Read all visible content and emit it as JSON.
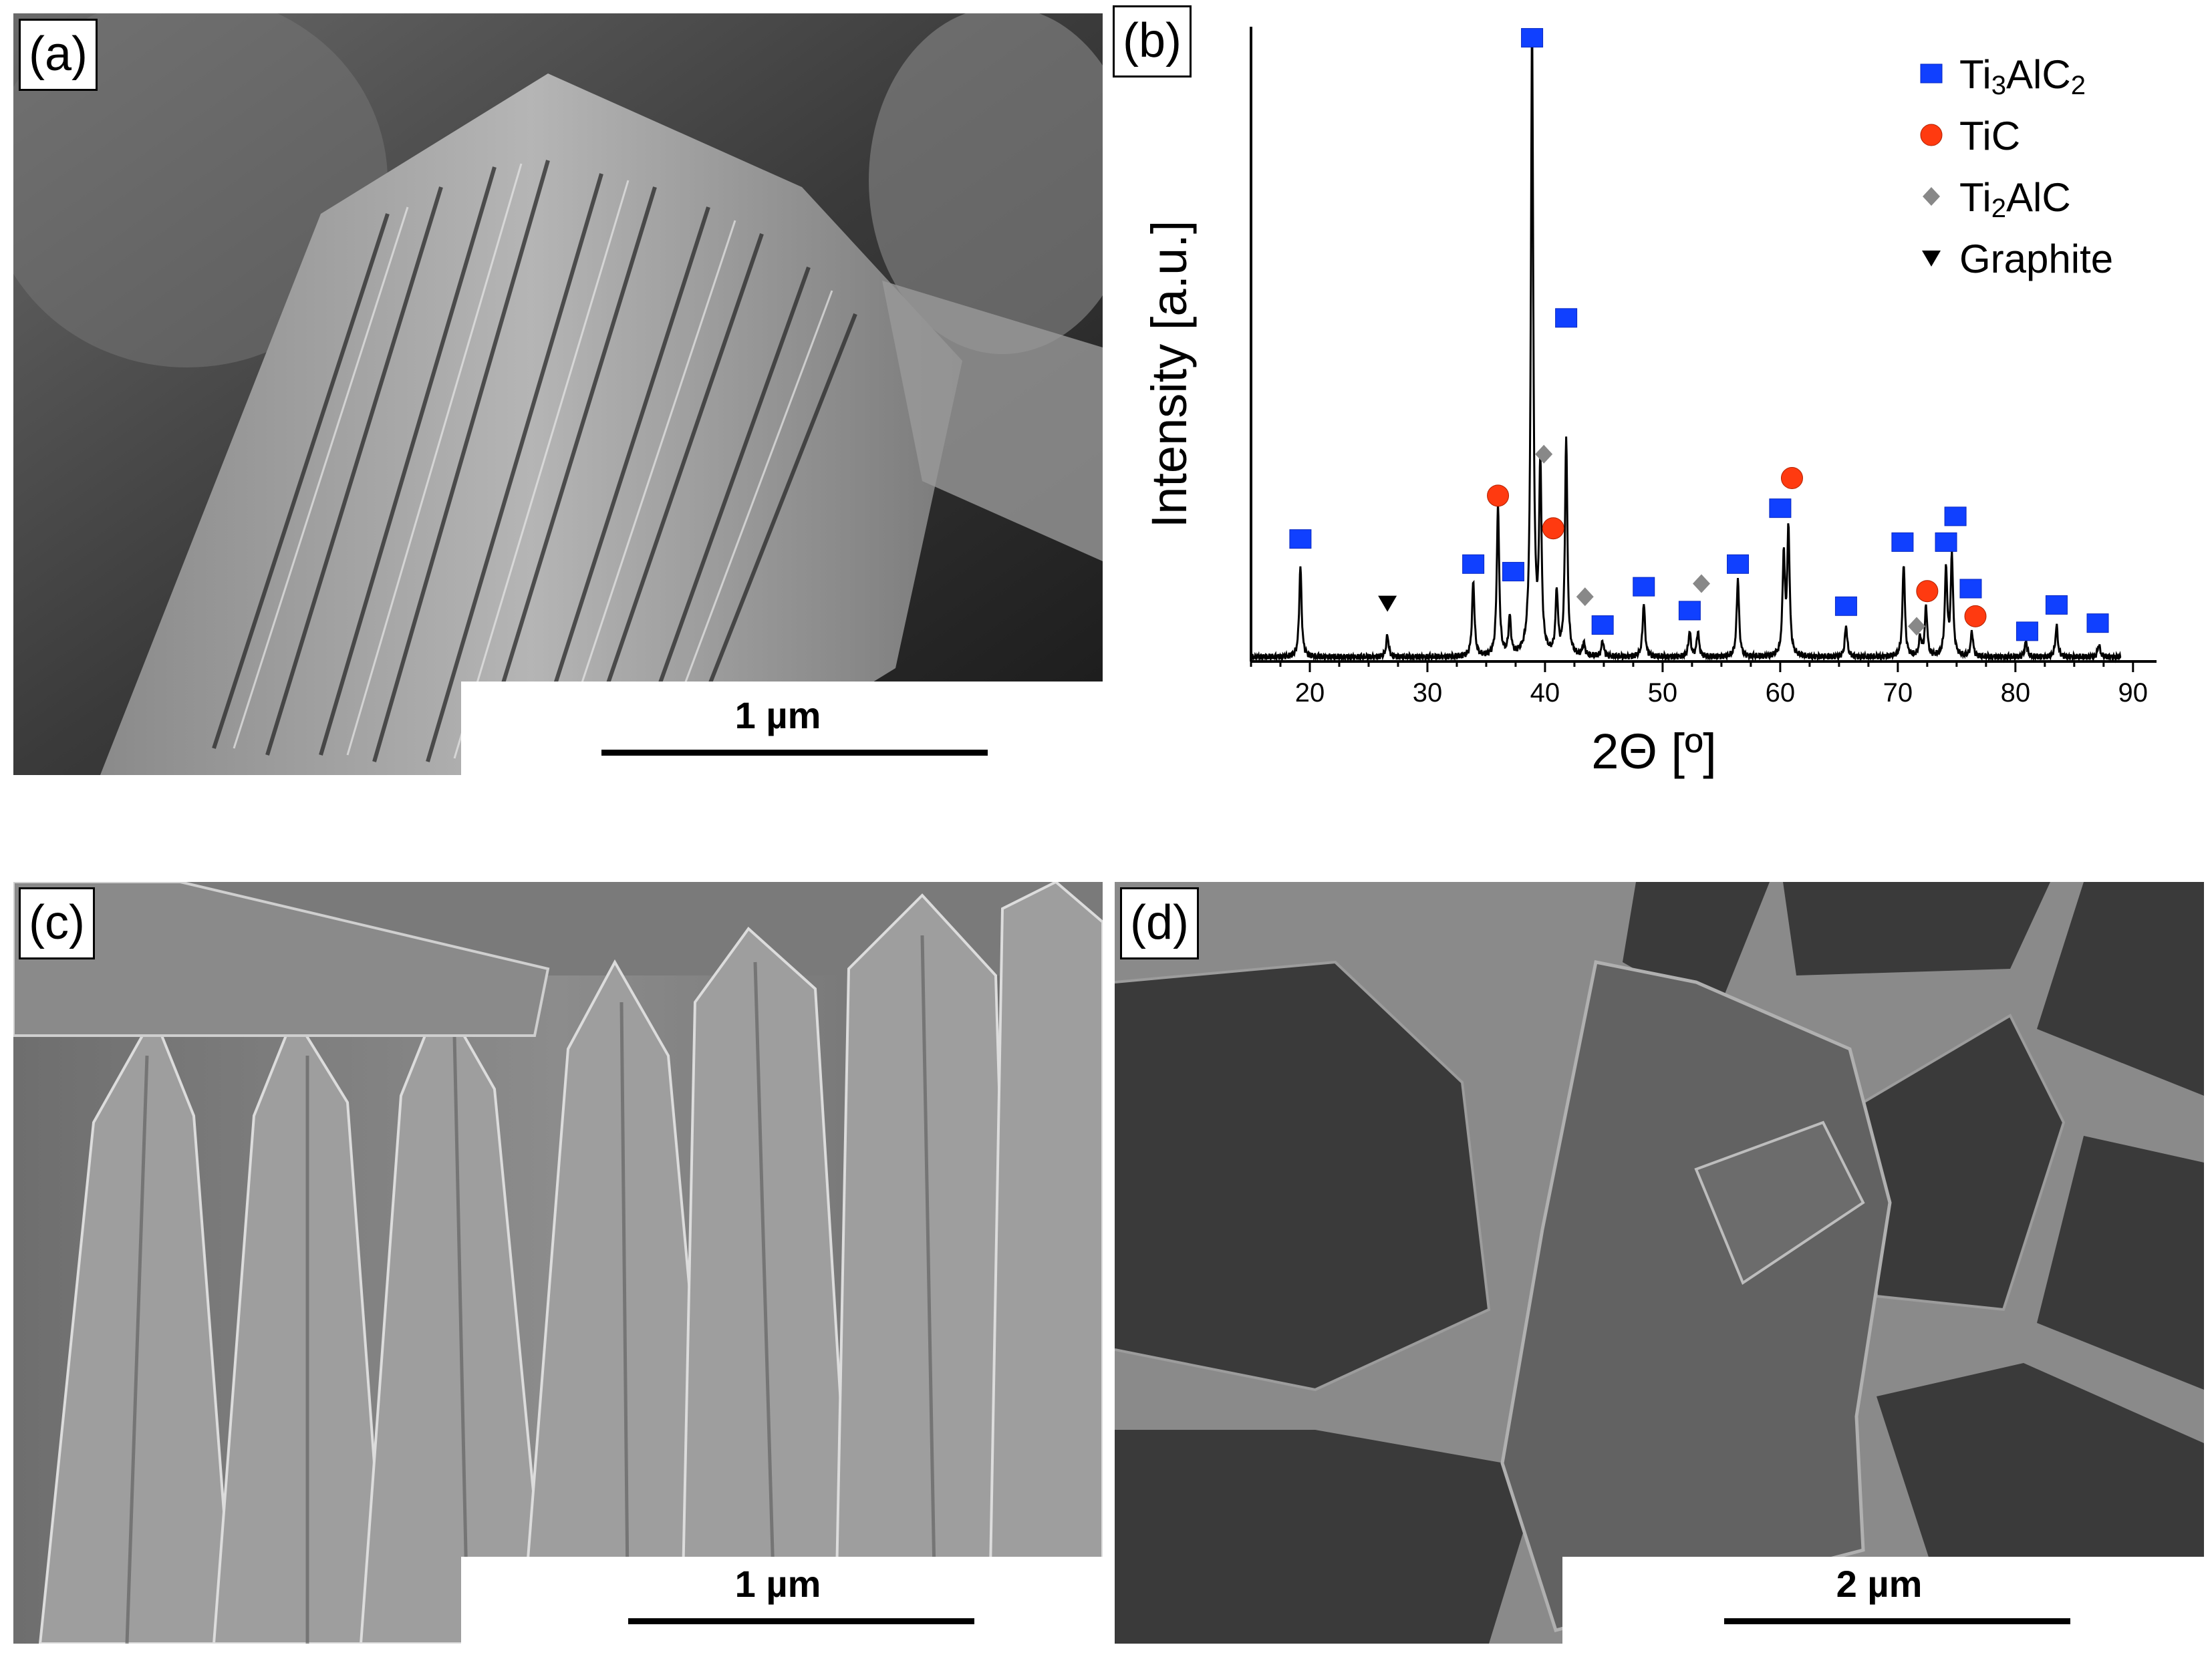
{
  "panels": {
    "a": {
      "label": "(a)",
      "scale_label": "1 µm"
    },
    "b": {
      "label": "(b)"
    },
    "c": {
      "label": "(c)",
      "scale_label": "1 µm"
    },
    "d": {
      "label": "(d)",
      "scale_label": "2 µm"
    }
  },
  "chart_data": {
    "type": "line",
    "xlabel": "2Θ [º]",
    "ylabel": "Intensity [a.u.]",
    "xlim": [
      15,
      92
    ],
    "xticks": [
      20,
      30,
      40,
      50,
      60,
      70,
      80,
      90
    ],
    "ylim": [
      0,
      100
    ],
    "grid": false,
    "legend": {
      "placement": "top-right",
      "entries": [
        {
          "name": "Ti3AlC2",
          "base": "Ti",
          "sub1": "3",
          "mid": "AlC",
          "sub2": "2",
          "marker": "square",
          "color": "#1040ff"
        },
        {
          "name": "TiC",
          "base": "TiC",
          "marker": "circle",
          "color": "#ff3a10"
        },
        {
          "name": "Ti2AlC",
          "base": "Ti",
          "sub1": "2",
          "mid": "AlC",
          "marker": "diamond",
          "color": "#888888"
        },
        {
          "name": "Graphite",
          "base": "Graphite",
          "marker": "triangle-down",
          "color": "#000000"
        }
      ]
    },
    "peaks": [
      [
        19.2,
        14.5
      ],
      [
        26.6,
        3.5
      ],
      [
        33.9,
        12
      ],
      [
        36.0,
        24
      ],
      [
        37.0,
        6
      ],
      [
        38.9,
        100
      ],
      [
        39.6,
        30
      ],
      [
        41.0,
        10
      ],
      [
        41.8,
        35
      ],
      [
        43.3,
        2
      ],
      [
        44.9,
        2.5
      ],
      [
        48.4,
        8.5
      ],
      [
        52.3,
        4
      ],
      [
        53.0,
        4
      ],
      [
        56.4,
        12.5
      ],
      [
        60.3,
        16
      ],
      [
        60.7,
        20
      ],
      [
        65.6,
        5
      ],
      [
        70.5,
        15
      ],
      [
        71.9,
        3
      ],
      [
        72.4,
        8
      ],
      [
        74.1,
        14
      ],
      [
        74.6,
        16
      ],
      [
        76.3,
        4
      ],
      [
        80.9,
        2.5
      ],
      [
        83.5,
        5
      ],
      [
        87.1,
        2
      ]
    ],
    "markers": [
      {
        "series": "Ti3AlC2",
        "x": 19.2,
        "y": 19.5
      },
      {
        "series": "Graphite",
        "x": 26.6,
        "y": 9.3
      },
      {
        "series": "Ti3AlC2",
        "x": 33.9,
        "y": 15.5
      },
      {
        "series": "TiC",
        "x": 36.0,
        "y": 26.4
      },
      {
        "series": "Ti3AlC2",
        "x": 37.3,
        "y": 14.3
      },
      {
        "series": "Ti3AlC2",
        "x": 38.9,
        "y": 99.3
      },
      {
        "series": "Ti2AlC",
        "x": 39.9,
        "y": 33.0
      },
      {
        "series": "TiC",
        "x": 40.7,
        "y": 21.2
      },
      {
        "series": "Ti3AlC2",
        "x": 41.8,
        "y": 54.7
      },
      {
        "series": "Ti2AlC",
        "x": 43.4,
        "y": 10.3
      },
      {
        "series": "Ti3AlC2",
        "x": 44.9,
        "y": 5.8
      },
      {
        "series": "Ti3AlC2",
        "x": 48.4,
        "y": 11.9
      },
      {
        "series": "Ti3AlC2",
        "x": 52.3,
        "y": 8.1
      },
      {
        "series": "Ti2AlC",
        "x": 53.3,
        "y": 12.4
      },
      {
        "series": "Ti3AlC2",
        "x": 56.4,
        "y": 15.5
      },
      {
        "series": "Ti3AlC2",
        "x": 60.0,
        "y": 24.4
      },
      {
        "series": "TiC",
        "x": 61.0,
        "y": 29.2
      },
      {
        "series": "Ti3AlC2",
        "x": 65.6,
        "y": 8.8
      },
      {
        "series": "Ti3AlC2",
        "x": 70.4,
        "y": 19.0
      },
      {
        "series": "Ti2AlC",
        "x": 71.6,
        "y": 5.6
      },
      {
        "series": "TiC",
        "x": 72.5,
        "y": 11.2
      },
      {
        "series": "Ti3AlC2",
        "x": 74.1,
        "y": 19.0
      },
      {
        "series": "Ti3AlC2",
        "x": 74.9,
        "y": 23.1
      },
      {
        "series": "Ti3AlC2",
        "x": 76.2,
        "y": 11.6
      },
      {
        "series": "TiC",
        "x": 76.6,
        "y": 7.2
      },
      {
        "series": "Ti3AlC2",
        "x": 81.0,
        "y": 4.8
      },
      {
        "series": "Ti3AlC2",
        "x": 83.5,
        "y": 9.0
      },
      {
        "series": "Ti3AlC2",
        "x": 87.0,
        "y": 6.1
      }
    ]
  }
}
